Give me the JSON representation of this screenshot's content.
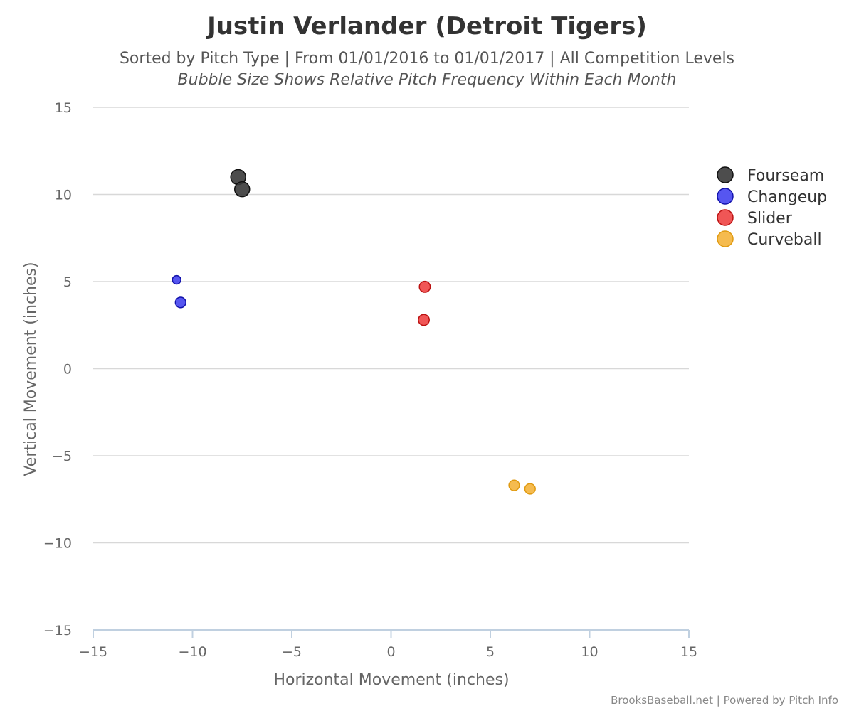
{
  "chart_data": {
    "type": "scatter",
    "title": "Justin Verlander (Detroit Tigers)",
    "subtitle": "Sorted by Pitch Type | From 01/01/2016 to 01/01/2017 | All Competition Levels",
    "subtitle2": "Bubble Size Shows Relative Pitch Frequency Within Each Month",
    "xlabel": "Horizontal Movement (inches)",
    "ylabel": "Vertical Movement (inches)",
    "xlim": [
      -15,
      15
    ],
    "ylim": [
      -15,
      15
    ],
    "xticks": [
      -15,
      -10,
      -5,
      0,
      5,
      10,
      15
    ],
    "yticks": [
      15,
      10,
      5,
      0,
      -5,
      -10,
      -15
    ],
    "xtick_labels": [
      "−15",
      "−10",
      "−5",
      "0",
      "5",
      "10",
      "15"
    ],
    "ytick_labels": [
      "15",
      "10",
      "5",
      "0",
      "−5",
      "−10",
      "−15"
    ],
    "grid": true,
    "legend_position": "right",
    "series": [
      {
        "name": "Fourseam",
        "color": "#3a3a3a",
        "stroke": "#111111",
        "points": [
          {
            "x": -7.7,
            "y": 11.0,
            "size": 1.0
          },
          {
            "x": -7.5,
            "y": 10.3,
            "size": 1.0
          }
        ]
      },
      {
        "name": "Changeup",
        "color": "#4444ee",
        "stroke": "#1111aa",
        "points": [
          {
            "x": -10.8,
            "y": 5.1,
            "size": 0.35
          },
          {
            "x": -10.6,
            "y": 3.8,
            "size": 0.55
          }
        ]
      },
      {
        "name": "Slider",
        "color": "#ee4444",
        "stroke": "#bb1111",
        "points": [
          {
            "x": 1.7,
            "y": 4.7,
            "size": 0.6
          },
          {
            "x": 1.65,
            "y": 2.8,
            "size": 0.6
          }
        ]
      },
      {
        "name": "Curveball",
        "color": "#f4b43c",
        "stroke": "#e09a10",
        "points": [
          {
            "x": 6.2,
            "y": -6.7,
            "size": 0.55
          },
          {
            "x": 7.0,
            "y": -6.9,
            "size": 0.55
          }
        ]
      }
    ]
  },
  "credits": "BrooksBaseball.net | Powered by Pitch Info"
}
